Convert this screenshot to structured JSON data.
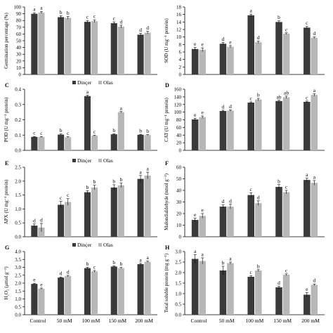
{
  "legend": {
    "series1": "Dinçer",
    "series2": "Olas"
  },
  "colors": {
    "series1": "#3a3a3a",
    "series2": "#b7b7b7",
    "axis": "#000000"
  },
  "chart_data": [
    {
      "type": "bar",
      "panel": "",
      "ylabel": "Germination percentage (%)",
      "ylim": [
        0,
        100
      ],
      "yticks": [
        "0",
        "10",
        "20",
        "30",
        "40",
        "50",
        "60",
        "70",
        "80",
        "90",
        "100"
      ],
      "categories": [
        "Control",
        "50 mM",
        "100 mM",
        "150 mM",
        "200 mM"
      ],
      "series": [
        {
          "name": "Dinçer",
          "values": [
            90,
            85,
            78,
            76,
            59
          ],
          "errors": [
            1.5,
            2,
            2,
            2,
            2
          ],
          "letters": [
            "a",
            "b",
            "c",
            "c",
            "d"
          ]
        },
        {
          "name": "Olas",
          "values": [
            92,
            84,
            79,
            71,
            62
          ],
          "errors": [
            1.5,
            2,
            2,
            2,
            2
          ],
          "letters": [
            "a",
            "b",
            "c",
            "d",
            "d"
          ]
        }
      ]
    },
    {
      "type": "bar",
      "panel": "",
      "ylabel": "SOD (U mg⁻¹ protein)",
      "ylim": [
        0,
        18
      ],
      "yticks": [
        "0",
        "2",
        "4",
        "6",
        "8",
        "10",
        "12",
        "14",
        "16",
        "18"
      ],
      "categories": [
        "Control",
        "50 mM",
        "100 mM",
        "150 mM",
        "200 mM"
      ],
      "series": [
        {
          "name": "Dinçer",
          "values": [
            6.8,
            8.2,
            15.8,
            14.0,
            12.5
          ],
          "errors": [
            0.4,
            0.3,
            0.3,
            0.3,
            0.3
          ],
          "letters": [
            "e",
            "d",
            "a",
            "b",
            "c"
          ]
        },
        {
          "name": "Olas",
          "values": [
            6.6,
            7.4,
            8.6,
            10.9,
            9.8
          ],
          "errors": [
            0.5,
            0.3,
            0.3,
            0.2,
            0.2
          ],
          "letters": [
            "e",
            "e",
            "d",
            "c",
            "d"
          ]
        }
      ]
    },
    {
      "type": "bar",
      "panel": "C",
      "ylabel": "POD (U mg⁻¹ protein)",
      "ylim": [
        0,
        0.4
      ],
      "yticks": [
        "0.0",
        "0.1",
        "0.2",
        "0.3",
        "0.4"
      ],
      "categories": [
        "Control",
        "50 mM",
        "100 mM",
        "150 mM",
        "200 mM"
      ],
      "series": [
        {
          "name": "Dinçer",
          "values": [
            0.088,
            0.103,
            0.355,
            0.105,
            0.102
          ],
          "errors": [
            0.003,
            0.004,
            0.006,
            0.003,
            0.003
          ],
          "letters": [
            "c",
            "b",
            "a",
            "b",
            "b"
          ]
        },
        {
          "name": "Olas",
          "values": [
            0.087,
            0.086,
            0.097,
            0.25,
            0.1
          ],
          "errors": [
            0.003,
            0.003,
            0.003,
            0.004,
            0.003
          ],
          "letters": [
            "c",
            "c",
            "c",
            "a",
            "b"
          ]
        }
      ]
    },
    {
      "type": "bar",
      "panel": "D",
      "ylabel": "CAT (U mg⁻¹ protein)",
      "ylim": [
        0,
        160
      ],
      "yticks": [
        "0",
        "20",
        "40",
        "60",
        "80",
        "100",
        "120",
        "140",
        "160"
      ],
      "categories": [
        "Control",
        "50 mM",
        "100 mM",
        "150 mM",
        "200 mM"
      ],
      "series": [
        {
          "name": "Dinçer",
          "values": [
            81,
            103,
            125,
            129,
            127
          ],
          "errors": [
            3,
            2,
            2,
            2,
            2
          ],
          "letters": [
            "e",
            "d",
            "c",
            "ab",
            "c"
          ]
        },
        {
          "name": "Olas",
          "values": [
            87,
            104,
            133,
            139,
            145
          ],
          "errors": [
            3,
            2,
            3,
            3,
            3
          ],
          "letters": [
            "e",
            "d",
            "b",
            "ab",
            "a"
          ]
        }
      ]
    },
    {
      "type": "bar",
      "panel": "E",
      "ylabel": "APX (U mg⁻¹ protein)",
      "ylim": [
        0,
        2.5
      ],
      "yticks": [
        "0.0",
        "0.5",
        "1.0",
        "1.5",
        "2.0",
        "2.5"
      ],
      "categories": [
        "Control",
        "50 mM",
        "100 mM",
        "150 mM",
        "200 mM"
      ],
      "series": [
        {
          "name": "Dinçer",
          "values": [
            0.4,
            1.15,
            1.6,
            1.77,
            2.08
          ],
          "errors": [
            0.06,
            0.12,
            0.06,
            0.1,
            0.12
          ],
          "letters": [
            "d",
            "c",
            "b",
            "b",
            "a"
          ]
        },
        {
          "name": "Olas",
          "values": [
            0.33,
            1.25,
            1.77,
            1.85,
            2.2
          ],
          "errors": [
            0.15,
            0.12,
            0.08,
            0.08,
            0.12
          ],
          "letters": [
            "d",
            "c",
            "b",
            "b",
            "a"
          ]
        }
      ]
    },
    {
      "type": "bar",
      "panel": "F",
      "ylabel": "Malondialdehyde (nmol g⁻¹)",
      "ylim": [
        0,
        60
      ],
      "yticks": [
        "0",
        "10",
        "20",
        "30",
        "40",
        "50",
        "60"
      ],
      "categories": [
        "Control",
        "50 mM",
        "100 mM",
        "150 mM",
        "200 mM"
      ],
      "series": [
        {
          "name": "Dinçer",
          "values": [
            14.5,
            26,
            36,
            43,
            49
          ],
          "errors": [
            1.5,
            1.5,
            2,
            2,
            1.5
          ],
          "letters": [
            "e",
            "d",
            "c",
            "b",
            "a"
          ]
        },
        {
          "name": "Olas",
          "values": [
            18,
            26,
            29,
            38.5,
            46.5
          ],
          "errors": [
            2,
            2,
            2,
            1.5,
            2
          ],
          "letters": [
            "e",
            "d",
            "d",
            "c",
            "a"
          ]
        }
      ]
    },
    {
      "type": "bar",
      "panel": "G",
      "ylabel": "H₂O₂ (μmol g⁻¹)",
      "ylim": [
        0,
        4.0
      ],
      "yticks": [
        "0.0",
        "0.5",
        "1.0",
        "1.5",
        "2.0",
        "2.5",
        "3.0",
        "3.5",
        "4.0"
      ],
      "categories": [
        "Control",
        "50 mM",
        "100 mM",
        "150 mM",
        "200 mM"
      ],
      "series": [
        {
          "name": "Dinçer",
          "values": [
            1.95,
            2.35,
            2.95,
            3.05,
            3.2
          ],
          "errors": [
            0.04,
            0.04,
            0.05,
            0.04,
            0.05
          ],
          "letters": [
            "e",
            "d",
            "b",
            "b",
            "a"
          ]
        },
        {
          "name": "Olas",
          "values": [
            1.65,
            2.45,
            2.75,
            2.95,
            3.35
          ],
          "errors": [
            0.04,
            0.04,
            0.05,
            0.04,
            0.04
          ],
          "letters": [
            "e",
            "d",
            "c",
            "b",
            "a"
          ]
        }
      ]
    },
    {
      "type": "bar",
      "panel": "H",
      "ylabel": "Total soluble protein (mg g⁻¹)",
      "ylim": [
        0,
        3.0
      ],
      "yticks": [
        "0.0",
        "0.5",
        "1.0",
        "1.5",
        "2.0",
        "2.5",
        "3.0"
      ],
      "categories": [
        "Control",
        "50 mM",
        "100 mM",
        "150 mM",
        "200 mM"
      ],
      "series": [
        {
          "name": "Dinçer",
          "values": [
            2.65,
            2.1,
            1.8,
            1.3,
            0.95
          ],
          "errors": [
            0.2,
            0.2,
            0.05,
            0.05,
            0.1
          ],
          "letters": [
            "a",
            "b",
            "c",
            "d",
            "e"
          ]
        },
        {
          "name": "Olas",
          "values": [
            2.55,
            2.45,
            2.1,
            1.9,
            1.42
          ],
          "errors": [
            0.15,
            0.05,
            0.04,
            0.04,
            0.04
          ],
          "letters": [
            "a",
            "a",
            "b",
            "c",
            "d"
          ]
        }
      ]
    }
  ]
}
